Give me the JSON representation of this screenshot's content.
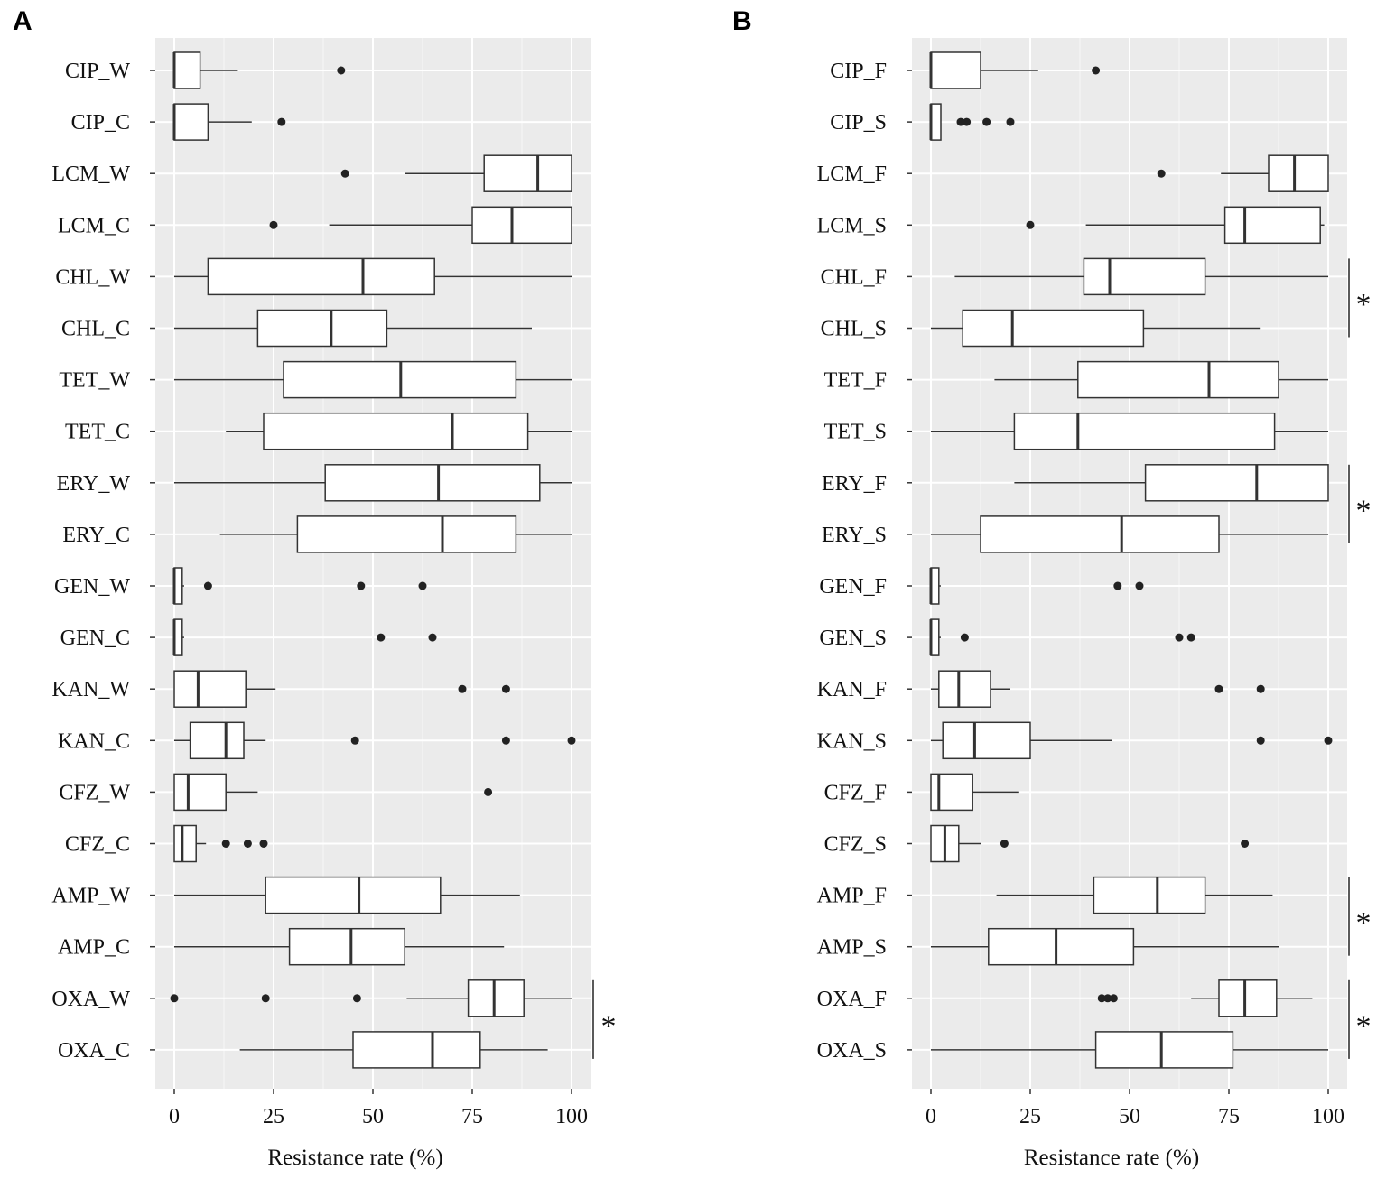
{
  "chart_data": [
    {
      "panel": "A",
      "type": "boxplot",
      "orientation": "horizontal",
      "xlabel": "Resistance rate (%)",
      "xlim": [
        0,
        100
      ],
      "xticks": [
        0,
        25,
        50,
        75,
        100
      ],
      "grid": true,
      "categories": [
        "CIP_W",
        "CIP_C",
        "LCM_W",
        "LCM_C",
        "CHL_W",
        "CHL_C",
        "TET_W",
        "TET_C",
        "ERY_W",
        "ERY_C",
        "GEN_W",
        "GEN_C",
        "KAN_W",
        "KAN_C",
        "CFZ_W",
        "CFZ_C",
        "AMP_W",
        "AMP_C",
        "OXA_W",
        "OXA_C"
      ],
      "boxes": [
        {
          "min": 0,
          "q1": 0,
          "median": 0,
          "q3": 6.5,
          "max": 16,
          "outliers": [
            42
          ]
        },
        {
          "min": 0,
          "q1": 0,
          "median": 0,
          "q3": 8.5,
          "max": 19.5,
          "outliers": [
            27
          ]
        },
        {
          "min": 58,
          "q1": 78,
          "median": 91.5,
          "q3": 100,
          "max": 100,
          "outliers": [
            43
          ]
        },
        {
          "min": 39,
          "q1": 75,
          "median": 85,
          "q3": 100,
          "max": 100,
          "outliers": [
            25
          ]
        },
        {
          "min": 0,
          "q1": 8.5,
          "median": 47.5,
          "q3": 65.5,
          "max": 100,
          "outliers": []
        },
        {
          "min": 0,
          "q1": 21,
          "median": 39.5,
          "q3": 53.5,
          "max": 90,
          "outliers": []
        },
        {
          "min": 0,
          "q1": 27.5,
          "median": 57,
          "q3": 86,
          "max": 100,
          "outliers": []
        },
        {
          "min": 13,
          "q1": 22.5,
          "median": 70,
          "q3": 89,
          "max": 100,
          "outliers": []
        },
        {
          "min": 0,
          "q1": 38,
          "median": 66.5,
          "q3": 92,
          "max": 100,
          "outliers": []
        },
        {
          "min": 11.5,
          "q1": 31,
          "median": 67.5,
          "q3": 86,
          "max": 100,
          "outliers": []
        },
        {
          "min": 0,
          "q1": 0,
          "median": 0,
          "q3": 2,
          "max": 2.5,
          "outliers": [
            8.5,
            47,
            62.5
          ]
        },
        {
          "min": 0,
          "q1": 0,
          "median": 0,
          "q3": 2,
          "max": 2.5,
          "outliers": [
            52,
            65
          ]
        },
        {
          "min": 0,
          "q1": 0,
          "median": 6,
          "q3": 18,
          "max": 25.5,
          "outliers": [
            72.5,
            83.5
          ]
        },
        {
          "min": 0,
          "q1": 4,
          "median": 13,
          "q3": 17.5,
          "max": 23,
          "outliers": [
            45.5,
            83.5,
            100
          ]
        },
        {
          "min": 0,
          "q1": 0,
          "median": 3.5,
          "q3": 13,
          "max": 21,
          "outliers": [
            79
          ]
        },
        {
          "min": 0,
          "q1": 0,
          "median": 2,
          "q3": 5.5,
          "max": 8,
          "outliers": [
            13,
            18.5,
            22.5
          ]
        },
        {
          "min": 0,
          "q1": 23,
          "median": 46.5,
          "q3": 67,
          "max": 87,
          "outliers": []
        },
        {
          "min": 0,
          "q1": 29,
          "median": 44.5,
          "q3": 58,
          "max": 83,
          "outliers": []
        },
        {
          "min": 58.5,
          "q1": 74,
          "median": 80.5,
          "q3": 88,
          "max": 100,
          "outliers": [
            0,
            23,
            46
          ]
        },
        {
          "min": 16.5,
          "q1": 45,
          "median": 65,
          "q3": 77,
          "max": 94,
          "outliers": []
        }
      ],
      "significance": [
        {
          "from": "OXA_W",
          "to": "OXA_C",
          "label": "*"
        }
      ]
    },
    {
      "panel": "B",
      "type": "boxplot",
      "orientation": "horizontal",
      "xlabel": "Resistance rate (%)",
      "xlim": [
        0,
        100
      ],
      "xticks": [
        0,
        25,
        50,
        75,
        100
      ],
      "grid": true,
      "categories": [
        "CIP_F",
        "CIP_S",
        "LCM_F",
        "LCM_S",
        "CHL_F",
        "CHL_S",
        "TET_F",
        "TET_S",
        "ERY_F",
        "ERY_S",
        "GEN_F",
        "GEN_S",
        "KAN_F",
        "KAN_S",
        "CFZ_F",
        "CFZ_S",
        "AMP_F",
        "AMP_S",
        "OXA_F",
        "OXA_S"
      ],
      "boxes": [
        {
          "min": 0,
          "q1": 0,
          "median": 0,
          "q3": 12.5,
          "max": 27,
          "outliers": [
            41.5
          ]
        },
        {
          "min": 0,
          "q1": 0,
          "median": 0,
          "q3": 2.5,
          "max": 2.5,
          "outliers": [
            7.5,
            9,
            14,
            20
          ]
        },
        {
          "min": 73,
          "q1": 85,
          "median": 91.5,
          "q3": 100,
          "max": 100,
          "outliers": [
            58
          ]
        },
        {
          "min": 39,
          "q1": 74,
          "median": 79,
          "q3": 98,
          "max": 99,
          "outliers": [
            25
          ]
        },
        {
          "min": 6,
          "q1": 38.5,
          "median": 45,
          "q3": 69,
          "max": 100,
          "outliers": []
        },
        {
          "min": 0,
          "q1": 8,
          "median": 20.5,
          "q3": 53.5,
          "max": 83,
          "outliers": []
        },
        {
          "min": 16,
          "q1": 37,
          "median": 70,
          "q3": 87.5,
          "max": 100,
          "outliers": []
        },
        {
          "min": 0,
          "q1": 21,
          "median": 37,
          "q3": 86.5,
          "max": 100,
          "outliers": []
        },
        {
          "min": 21,
          "q1": 54,
          "median": 82,
          "q3": 100,
          "max": 100,
          "outliers": []
        },
        {
          "min": 0,
          "q1": 12.5,
          "median": 48,
          "q3": 72.5,
          "max": 100,
          "outliers": []
        },
        {
          "min": 0,
          "q1": 0,
          "median": 0,
          "q3": 2,
          "max": 2.5,
          "outliers": [
            47,
            52.5
          ]
        },
        {
          "min": 0,
          "q1": 0,
          "median": 0,
          "q3": 2,
          "max": 2.5,
          "outliers": [
            8.5,
            62.5,
            65.5
          ]
        },
        {
          "min": 0,
          "q1": 2,
          "median": 7,
          "q3": 15,
          "max": 20,
          "outliers": [
            72.5,
            83
          ]
        },
        {
          "min": 0,
          "q1": 3,
          "median": 11,
          "q3": 25,
          "max": 45.5,
          "outliers": [
            83,
            100
          ]
        },
        {
          "min": 0,
          "q1": 0,
          "median": 2,
          "q3": 10.5,
          "max": 22,
          "outliers": []
        },
        {
          "min": 0,
          "q1": 0,
          "median": 3.5,
          "q3": 7,
          "max": 12.5,
          "outliers": [
            18.5,
            79
          ]
        },
        {
          "min": 16.5,
          "q1": 41,
          "median": 57,
          "q3": 69,
          "max": 86,
          "outliers": []
        },
        {
          "min": 0,
          "q1": 14.5,
          "median": 31.5,
          "q3": 51,
          "max": 87.5,
          "outliers": []
        },
        {
          "min": 65.5,
          "q1": 72.5,
          "median": 79,
          "q3": 87,
          "max": 96,
          "outliers": [
            43,
            44.5,
            46
          ]
        },
        {
          "min": 0,
          "q1": 41.5,
          "median": 58,
          "q3": 76,
          "max": 100,
          "outliers": []
        }
      ],
      "significance": [
        {
          "from": "CHL_F",
          "to": "CHL_S",
          "label": "*"
        },
        {
          "from": "ERY_F",
          "to": "ERY_S",
          "label": "*"
        },
        {
          "from": "AMP_F",
          "to": "AMP_S",
          "label": "*"
        },
        {
          "from": "OXA_F",
          "to": "OXA_S",
          "label": "*"
        }
      ]
    }
  ]
}
